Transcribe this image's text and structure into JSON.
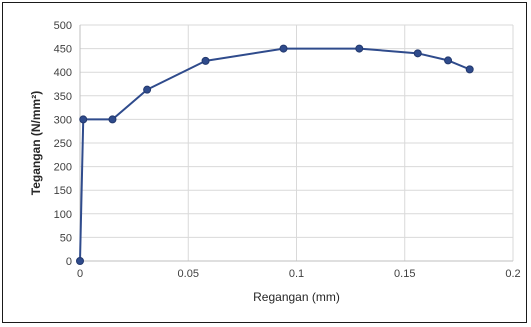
{
  "chart_data": {
    "type": "scatter",
    "title": "",
    "xlabel": "Regangan (mm)",
    "ylabel": "Tegangan (N/mm²)",
    "xlim": [
      0,
      0.2
    ],
    "ylim": [
      0,
      500
    ],
    "x_ticks": [
      0,
      0.05,
      0.1,
      0.15,
      0.2
    ],
    "x_tick_labels": [
      "0",
      "0.05",
      "0.1",
      "0.15",
      "0.2"
    ],
    "y_ticks": [
      0,
      50,
      100,
      150,
      200,
      250,
      300,
      350,
      400,
      450,
      500
    ],
    "y_tick_labels": [
      "0",
      "50",
      "100",
      "150",
      "200",
      "250",
      "300",
      "350",
      "400",
      "450",
      "500"
    ],
    "grid": true,
    "series": [
      {
        "color": "#2f4b8c",
        "points": [
          {
            "x": 0,
            "y": 0
          },
          {
            "x": 0.0015,
            "y": 300
          },
          {
            "x": 0.015,
            "y": 300
          },
          {
            "x": 0.031,
            "y": 363
          },
          {
            "x": 0.058,
            "y": 424
          },
          {
            "x": 0.094,
            "y": 450
          },
          {
            "x": 0.129,
            "y": 450
          },
          {
            "x": 0.156,
            "y": 440
          },
          {
            "x": 0.17,
            "y": 425
          },
          {
            "x": 0.18,
            "y": 406
          }
        ]
      }
    ]
  }
}
